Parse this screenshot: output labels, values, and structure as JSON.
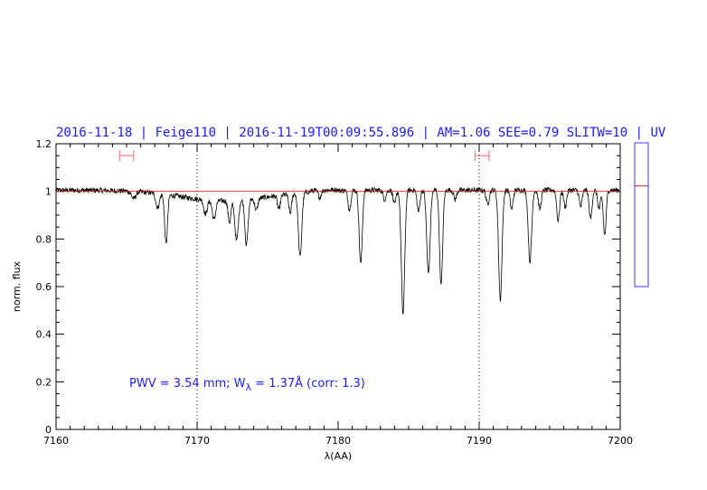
{
  "chart_data": {
    "type": "line",
    "title": "2016-11-18 | Feige110 | 2016-11-19T00:09:55.896 | AM=1.06  SEE=0.79  SLITW=10 | UV",
    "xlabel": "λ(AA)",
    "ylabel": "norm. flux",
    "xlim": [
      7160,
      7200
    ],
    "ylim": [
      0,
      1.2
    ],
    "x_ticks": [
      7160,
      7170,
      7180,
      7190,
      7200
    ],
    "x_tick_labels": [
      "7160",
      "7170",
      "7180",
      "7190",
      "7200"
    ],
    "y_ticks": [
      0,
      0.2,
      0.4,
      0.6,
      0.8,
      1,
      1.2
    ],
    "y_tick_labels": [
      "0",
      "0.2",
      "0.4",
      "0.6",
      "0.8",
      "1",
      "1.2"
    ],
    "grid": false,
    "continuum_level": 1.0,
    "continuum_color": "#cc2222",
    "spectrum_color": "#000000",
    "vertical_markers": [
      7170,
      7190
    ],
    "error_bar_markers": [
      [
        7164.5,
        7165.5
      ],
      [
        7189.7,
        7190.7
      ]
    ],
    "error_bar_y": 1.15,
    "error_bar_color": "#ff6666",
    "annotation": {
      "prefix": "PWV  =  3.54  mm;  W",
      "subscript": "λ",
      "suffix": "  =  1.37Å  (corr:  1.3)",
      "x": 7171,
      "y": 0.19
    },
    "absorption_lines": [
      {
        "center": 7165.5,
        "depth": 0.03,
        "width": 0.15
      },
      {
        "center": 7167.2,
        "depth": 0.06,
        "width": 0.12
      },
      {
        "center": 7167.8,
        "depth": 0.21,
        "width": 0.1
      },
      {
        "center": 7170.6,
        "depth": 0.06,
        "width": 0.12
      },
      {
        "center": 7171.2,
        "depth": 0.08,
        "width": 0.12
      },
      {
        "center": 7172.3,
        "depth": 0.09,
        "width": 0.1
      },
      {
        "center": 7172.8,
        "depth": 0.17,
        "width": 0.12
      },
      {
        "center": 7173.5,
        "depth": 0.19,
        "width": 0.11
      },
      {
        "center": 7174.2,
        "depth": 0.05,
        "width": 0.1
      },
      {
        "center": 7175.8,
        "depth": 0.06,
        "width": 0.1
      },
      {
        "center": 7176.6,
        "depth": 0.08,
        "width": 0.1
      },
      {
        "center": 7177.3,
        "depth": 0.27,
        "width": 0.12
      },
      {
        "center": 7178.7,
        "depth": 0.03,
        "width": 0.1
      },
      {
        "center": 7180.8,
        "depth": 0.08,
        "width": 0.1
      },
      {
        "center": 7181.6,
        "depth": 0.31,
        "width": 0.11
      },
      {
        "center": 7183.3,
        "depth": 0.04,
        "width": 0.1
      },
      {
        "center": 7184.0,
        "depth": 0.06,
        "width": 0.1
      },
      {
        "center": 7184.6,
        "depth": 0.52,
        "width": 0.12
      },
      {
        "center": 7185.7,
        "depth": 0.09,
        "width": 0.1
      },
      {
        "center": 7186.4,
        "depth": 0.35,
        "width": 0.12
      },
      {
        "center": 7187.3,
        "depth": 0.4,
        "width": 0.11
      },
      {
        "center": 7188.3,
        "depth": 0.04,
        "width": 0.1
      },
      {
        "center": 7190.6,
        "depth": 0.06,
        "width": 0.1
      },
      {
        "center": 7191.5,
        "depth": 0.46,
        "width": 0.12
      },
      {
        "center": 7192.3,
        "depth": 0.08,
        "width": 0.1
      },
      {
        "center": 7193.6,
        "depth": 0.3,
        "width": 0.12
      },
      {
        "center": 7194.3,
        "depth": 0.08,
        "width": 0.1
      },
      {
        "center": 7195.6,
        "depth": 0.13,
        "width": 0.1
      },
      {
        "center": 7196.1,
        "depth": 0.07,
        "width": 0.1
      },
      {
        "center": 7197.2,
        "depth": 0.07,
        "width": 0.1
      },
      {
        "center": 7197.9,
        "depth": 0.12,
        "width": 0.1
      },
      {
        "center": 7198.5,
        "depth": 0.08,
        "width": 0.1
      },
      {
        "center": 7198.9,
        "depth": 0.19,
        "width": 0.1
      }
    ]
  },
  "side_indicator": {
    "border_color": "#3a3aff",
    "marker_color": "#cc2222",
    "level_fraction": 0.3
  }
}
